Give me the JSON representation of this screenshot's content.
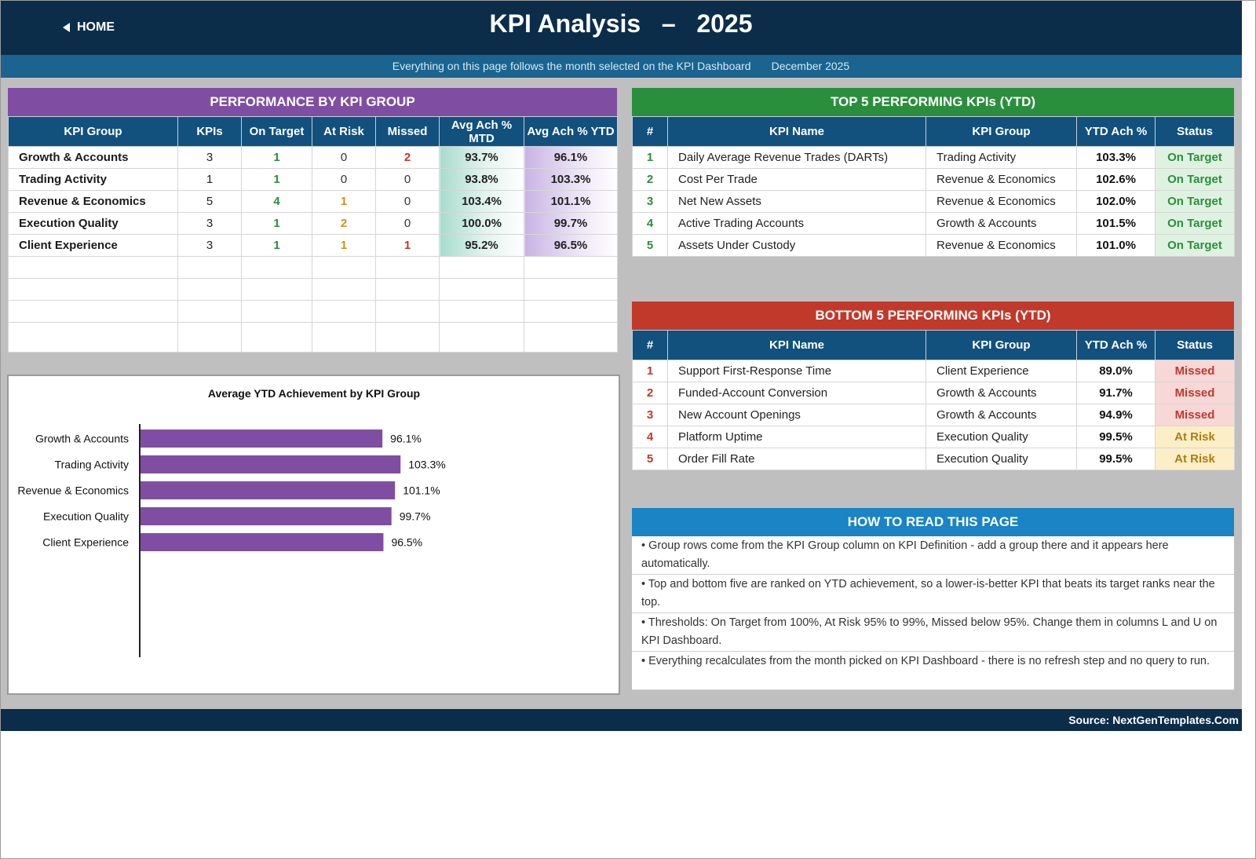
{
  "header": {
    "home_label": "HOME",
    "title": "KPI Analysis   –   2025",
    "subtitle": "Everything on this page follows the month selected on the KPI Dashboard",
    "selected_month": "December 2025"
  },
  "group_panel": {
    "title": "PERFORMANCE BY KPI GROUP",
    "columns": [
      "KPI Group",
      "KPIs",
      "On Target",
      "At Risk",
      "Missed",
      "Avg Ach % MTD",
      "Avg Ach % YTD"
    ],
    "rows": [
      {
        "group": "Growth & Accounts",
        "kpis": "3",
        "on_target": "1",
        "at_risk": "0",
        "missed": "2",
        "mtd": "93.7%",
        "ytd": "96.1%"
      },
      {
        "group": "Trading Activity",
        "kpis": "1",
        "on_target": "1",
        "at_risk": "0",
        "missed": "0",
        "mtd": "93.8%",
        "ytd": "103.3%"
      },
      {
        "group": "Revenue & Economics",
        "kpis": "5",
        "on_target": "4",
        "at_risk": "1",
        "missed": "0",
        "mtd": "103.4%",
        "ytd": "101.1%"
      },
      {
        "group": "Execution Quality",
        "kpis": "3",
        "on_target": "1",
        "at_risk": "2",
        "missed": "0",
        "mtd": "100.0%",
        "ytd": "99.7%"
      },
      {
        "group": "Client Experience",
        "kpis": "3",
        "on_target": "1",
        "at_risk": "1",
        "missed": "1",
        "mtd": "95.2%",
        "ytd": "96.5%"
      }
    ]
  },
  "chart_data": {
    "type": "bar",
    "orientation": "horizontal",
    "title": "Average YTD Achievement by KPI Group",
    "categories": [
      "Growth & Accounts",
      "Trading Activity",
      "Revenue & Economics",
      "Execution Quality",
      "Client Experience"
    ],
    "values": [
      96.1,
      103.3,
      101.1,
      99.7,
      96.5
    ],
    "value_labels": [
      "96.1%",
      "103.3%",
      "101.1%",
      "99.7%",
      "96.5%"
    ],
    "xlim": [
      0,
      150
    ],
    "bar_color": "#7f4ea3",
    "grid": false,
    "legend": "none"
  },
  "top5": {
    "title": "TOP 5 PERFORMING KPIs  (YTD)",
    "columns": [
      "#",
      "KPI Name",
      "KPI Group",
      "YTD Ach %",
      "Status"
    ],
    "rows": [
      {
        "rank": "1",
        "name": "Daily Average Revenue Trades (DARTs)",
        "group": "Trading Activity",
        "ytd": "103.3%",
        "status": "On Target"
      },
      {
        "rank": "2",
        "name": "Cost Per Trade",
        "group": "Revenue & Economics",
        "ytd": "102.6%",
        "status": "On Target"
      },
      {
        "rank": "3",
        "name": "Net New Assets",
        "group": "Revenue & Economics",
        "ytd": "102.0%",
        "status": "On Target"
      },
      {
        "rank": "4",
        "name": "Active Trading Accounts",
        "group": "Growth & Accounts",
        "ytd": "101.5%",
        "status": "On Target"
      },
      {
        "rank": "5",
        "name": "Assets Under Custody",
        "group": "Revenue & Economics",
        "ytd": "101.0%",
        "status": "On Target"
      }
    ]
  },
  "bottom5": {
    "title": "BOTTOM 5 PERFORMING KPIs  (YTD)",
    "columns": [
      "#",
      "KPI Name",
      "KPI Group",
      "YTD Ach %",
      "Status"
    ],
    "rows": [
      {
        "rank": "1",
        "name": "Support First-Response Time",
        "group": "Client Experience",
        "ytd": "89.0%",
        "status": "Missed"
      },
      {
        "rank": "2",
        "name": "Funded-Account Conversion",
        "group": "Growth & Accounts",
        "ytd": "91.7%",
        "status": "Missed"
      },
      {
        "rank": "3",
        "name": "New Account Openings",
        "group": "Growth & Accounts",
        "ytd": "94.9%",
        "status": "Missed"
      },
      {
        "rank": "4",
        "name": "Platform Uptime",
        "group": "Execution Quality",
        "ytd": "99.5%",
        "status": "At Risk"
      },
      {
        "rank": "5",
        "name": "Order Fill Rate",
        "group": "Execution Quality",
        "ytd": "99.5%",
        "status": "At Risk"
      }
    ]
  },
  "how_to_read": {
    "title": "HOW TO READ THIS PAGE",
    "items": [
      "•  Group rows come from the KPI Group column on KPI Definition - add a group there and it appears here automatically.",
      "•  Top and bottom five are ranked on YTD achievement, so a lower-is-better KPI that beats its target ranks near the top.",
      "•  Thresholds: On Target from 100%, At Risk 95% to 99%, Missed below 95%. Change them in columns L and U on KPI Dashboard.",
      "•  Everything recalculates from the month picked on KPI Dashboard - there is no refresh step and no query to run."
    ]
  },
  "footer": {
    "source": "Source: NextGenTemplates.Com"
  },
  "colors": {
    "navy": "#0c2d4a",
    "group_purple": "#7f4ea3",
    "top_green": "#2a8f3c",
    "bottom_red": "#c0392b",
    "how_blue": "#1a84c4",
    "on_target": "#2a8f3c",
    "at_risk": "#c8951b",
    "missed": "#c0392b"
  }
}
